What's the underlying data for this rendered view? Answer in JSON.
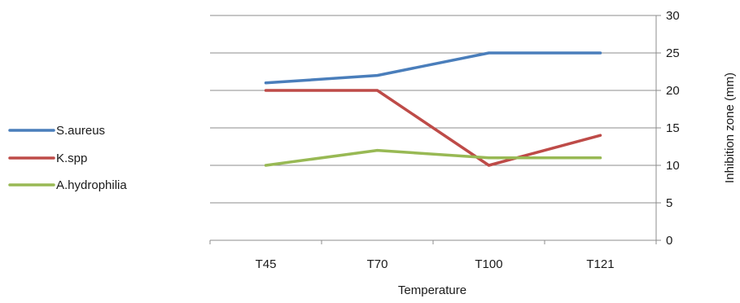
{
  "chart_data": {
    "type": "line",
    "categories": [
      "T45",
      "T70",
      "T100",
      "T121"
    ],
    "series": [
      {
        "name": "S.aureus",
        "values": [
          21,
          22,
          25,
          25
        ],
        "color": "#4a7ebb"
      },
      {
        "name": "K.spp",
        "values": [
          20,
          20,
          10,
          14
        ],
        "color": "#be4b48"
      },
      {
        "name": "A.hydrophilia",
        "values": [
          10,
          12,
          11,
          11
        ],
        "color": "#98b954"
      }
    ],
    "title": "",
    "xlabel": "Temperature",
    "ylabel": "Inhibition zone (mm)",
    "ylim": [
      0,
      30
    ],
    "yticks": [
      0,
      5,
      10,
      15,
      20,
      25,
      30
    ],
    "y_axis_side": "right",
    "grid": "horizontal",
    "grid_color": "#8c8c8c",
    "legend_position": "left"
  }
}
